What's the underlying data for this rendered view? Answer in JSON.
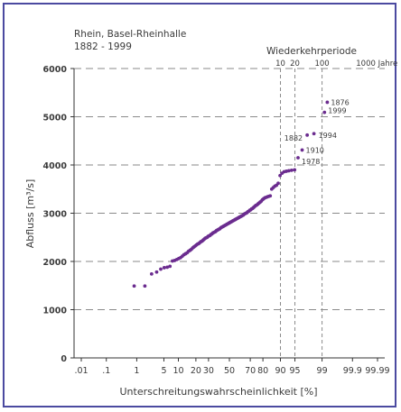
{
  "chart_data": {
    "type": "scatter",
    "title": "Rhein, Basel-Rheinhalle",
    "subtitle": "1882 - 1999",
    "xlabel": "Unterschreitungswahrscheinlichkeit [%]",
    "ylabel": "Abfluss [m³/s]",
    "x_scale": "normal-probability",
    "xlim": [
      0.01,
      99.99
    ],
    "ylim": [
      0,
      6000
    ],
    "x_ticks": [
      {
        "p": 0.01,
        "label": ".01"
      },
      {
        "p": 0.1,
        "label": ".1"
      },
      {
        "p": 1,
        "label": "1"
      },
      {
        "p": 5,
        "label": "5"
      },
      {
        "p": 10,
        "label": "10"
      },
      {
        "p": 20,
        "label": "20"
      },
      {
        "p": 30,
        "label": "30"
      },
      {
        "p": 50,
        "label": "50"
      },
      {
        "p": 70,
        "label": "70"
      },
      {
        "p": 80,
        "label": "80"
      },
      {
        "p": 90,
        "label": "90"
      },
      {
        "p": 95,
        "label": "95"
      },
      {
        "p": 99,
        "label": "99"
      },
      {
        "p": 99.9,
        "label": "99.9"
      },
      {
        "p": 99.99,
        "label": "99.99"
      }
    ],
    "y_ticks": [
      0,
      1000,
      2000,
      3000,
      4000,
      5000,
      6000
    ],
    "y_gridlines": [
      1000,
      2000,
      3000,
      4000,
      5000,
      6000
    ],
    "return_period_axis": {
      "label": "Wiederkehrperiode",
      "ticks": [
        {
          "p": 90,
          "label": "10"
        },
        {
          "p": 95,
          "label": "20"
        },
        {
          "p": 99,
          "label": "100"
        },
        {
          "p": 99.9,
          "label": "1000 Jahre"
        }
      ]
    },
    "vertical_reference_lines": [
      90,
      95,
      99
    ],
    "marker_color": "#6b2c8f",
    "points": [
      {
        "p": 0.84,
        "q": 1490
      },
      {
        "p": 1.69,
        "q": 1490
      },
      {
        "p": 2.54,
        "q": 1740
      },
      {
        "p": 3.39,
        "q": 1780
      },
      {
        "p": 4.24,
        "q": 1840
      },
      {
        "p": 5.08,
        "q": 1870
      },
      {
        "p": 5.93,
        "q": 1880
      },
      {
        "p": 6.78,
        "q": 1900
      },
      {
        "p": 7.63,
        "q": 2010
      },
      {
        "p": 8.47,
        "q": 2020
      },
      {
        "p": 9.32,
        "q": 2040
      },
      {
        "p": 10.17,
        "q": 2060
      },
      {
        "p": 11.02,
        "q": 2080
      },
      {
        "p": 11.86,
        "q": 2110
      },
      {
        "p": 12.71,
        "q": 2140
      },
      {
        "p": 13.56,
        "q": 2160
      },
      {
        "p": 14.41,
        "q": 2180
      },
      {
        "p": 15.25,
        "q": 2210
      },
      {
        "p": 16.1,
        "q": 2230
      },
      {
        "p": 16.95,
        "q": 2250
      },
      {
        "p": 17.8,
        "q": 2280
      },
      {
        "p": 18.64,
        "q": 2300
      },
      {
        "p": 19.49,
        "q": 2320
      },
      {
        "p": 20.34,
        "q": 2340
      },
      {
        "p": 21.19,
        "q": 2360
      },
      {
        "p": 22.03,
        "q": 2370
      },
      {
        "p": 22.88,
        "q": 2390
      },
      {
        "p": 23.73,
        "q": 2410
      },
      {
        "p": 24.58,
        "q": 2420
      },
      {
        "p": 25.42,
        "q": 2440
      },
      {
        "p": 26.27,
        "q": 2460
      },
      {
        "p": 27.12,
        "q": 2480
      },
      {
        "p": 27.97,
        "q": 2490
      },
      {
        "p": 28.81,
        "q": 2500
      },
      {
        "p": 29.66,
        "q": 2520
      },
      {
        "p": 30.51,
        "q": 2530
      },
      {
        "p": 31.36,
        "q": 2540
      },
      {
        "p": 32.2,
        "q": 2560
      },
      {
        "p": 33.05,
        "q": 2570
      },
      {
        "p": 33.9,
        "q": 2590
      },
      {
        "p": 34.75,
        "q": 2600
      },
      {
        "p": 35.59,
        "q": 2610
      },
      {
        "p": 36.44,
        "q": 2620
      },
      {
        "p": 37.29,
        "q": 2640
      },
      {
        "p": 38.14,
        "q": 2650
      },
      {
        "p": 38.98,
        "q": 2660
      },
      {
        "p": 39.83,
        "q": 2670
      },
      {
        "p": 40.68,
        "q": 2680
      },
      {
        "p": 41.53,
        "q": 2700
      },
      {
        "p": 42.37,
        "q": 2710
      },
      {
        "p": 43.22,
        "q": 2720
      },
      {
        "p": 44.07,
        "q": 2730
      },
      {
        "p": 44.92,
        "q": 2740
      },
      {
        "p": 45.76,
        "q": 2750
      },
      {
        "p": 46.61,
        "q": 2760
      },
      {
        "p": 47.46,
        "q": 2770
      },
      {
        "p": 48.31,
        "q": 2780
      },
      {
        "p": 49.15,
        "q": 2790
      },
      {
        "p": 50.0,
        "q": 2800
      },
      {
        "p": 50.85,
        "q": 2810
      },
      {
        "p": 51.69,
        "q": 2820
      },
      {
        "p": 52.54,
        "q": 2830
      },
      {
        "p": 53.39,
        "q": 2840
      },
      {
        "p": 54.24,
        "q": 2850
      },
      {
        "p": 55.08,
        "q": 2860
      },
      {
        "p": 55.93,
        "q": 2870
      },
      {
        "p": 56.78,
        "q": 2880
      },
      {
        "p": 57.63,
        "q": 2890
      },
      {
        "p": 58.47,
        "q": 2900
      },
      {
        "p": 59.32,
        "q": 2910
      },
      {
        "p": 60.17,
        "q": 2920
      },
      {
        "p": 61.02,
        "q": 2930
      },
      {
        "p": 61.86,
        "q": 2940
      },
      {
        "p": 62.71,
        "q": 2950
      },
      {
        "p": 63.56,
        "q": 2960
      },
      {
        "p": 64.41,
        "q": 2980
      },
      {
        "p": 65.25,
        "q": 2990
      },
      {
        "p": 66.1,
        "q": 3000
      },
      {
        "p": 66.95,
        "q": 3010
      },
      {
        "p": 67.8,
        "q": 3030
      },
      {
        "p": 68.64,
        "q": 3040
      },
      {
        "p": 69.49,
        "q": 3060
      },
      {
        "p": 70.34,
        "q": 3070
      },
      {
        "p": 71.19,
        "q": 3090
      },
      {
        "p": 72.03,
        "q": 3100
      },
      {
        "p": 72.88,
        "q": 3120
      },
      {
        "p": 73.73,
        "q": 3140
      },
      {
        "p": 74.58,
        "q": 3160
      },
      {
        "p": 75.42,
        "q": 3170
      },
      {
        "p": 76.27,
        "q": 3190
      },
      {
        "p": 77.12,
        "q": 3210
      },
      {
        "p": 77.97,
        "q": 3230
      },
      {
        "p": 78.81,
        "q": 3250
      },
      {
        "p": 79.66,
        "q": 3280
      },
      {
        "p": 80.51,
        "q": 3300
      },
      {
        "p": 81.36,
        "q": 3320
      },
      {
        "p": 82.2,
        "q": 3330
      },
      {
        "p": 83.05,
        "q": 3340
      },
      {
        "p": 83.9,
        "q": 3350
      },
      {
        "p": 84.75,
        "q": 3360
      },
      {
        "p": 85.59,
        "q": 3500
      },
      {
        "p": 86.44,
        "q": 3530
      },
      {
        "p": 87.29,
        "q": 3560
      },
      {
        "p": 88.14,
        "q": 3580
      },
      {
        "p": 88.98,
        "q": 3620
      },
      {
        "p": 89.83,
        "q": 3780
      },
      {
        "p": 90.68,
        "q": 3830
      },
      {
        "p": 91.53,
        "q": 3860
      },
      {
        "p": 92.37,
        "q": 3870
      },
      {
        "p": 93.22,
        "q": 3880
      },
      {
        "p": 94.07,
        "q": 3890
      },
      {
        "p": 94.92,
        "q": 3900
      },
      {
        "p": 95.76,
        "q": 4150,
        "label": "1978"
      },
      {
        "p": 96.61,
        "q": 4310,
        "label": "1910"
      },
      {
        "p": 97.46,
        "q": 4620,
        "label": "1882"
      },
      {
        "p": 98.31,
        "q": 4650,
        "label": "1994"
      },
      {
        "p": 99.15,
        "q": 5090,
        "label": "1999"
      },
      {
        "p": 99.3,
        "q": 5300,
        "label": "1876"
      }
    ]
  }
}
